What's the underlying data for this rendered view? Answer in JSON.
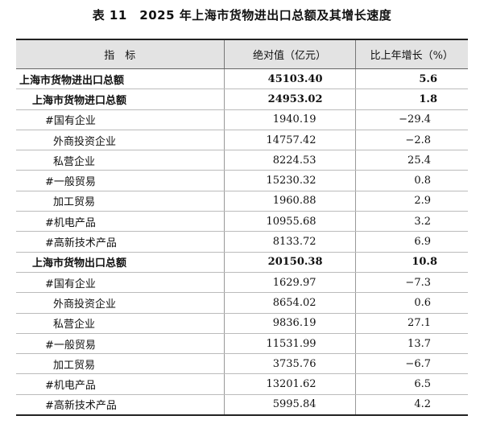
{
  "title": "表 11　2025 年上海市货物进出口总额及其增长速度",
  "headers": [
    "指　标",
    "绝对值（亿元）",
    "比上年增长（%）"
  ],
  "rows": [
    {
      "name": "上海市货物进出口总额",
      "value": "45103.40",
      "change": "5.6",
      "level": "l0",
      "bold": true
    },
    {
      "name": "上海市货物进口总额",
      "value": "24953.02",
      "change": "1.8",
      "level": "l1",
      "bold": true
    },
    {
      "name": "#国有企业",
      "value": "1940.19",
      "change": "−29.4",
      "level": "l2h",
      "bold": false
    },
    {
      "name": "外商投资企业",
      "value": "14757.42",
      "change": "−2.8",
      "level": "l2",
      "bold": false
    },
    {
      "name": "私营企业",
      "value": "8224.53",
      "change": "25.4",
      "level": "l2",
      "bold": false
    },
    {
      "name": "#一般贸易",
      "value": "15230.32",
      "change": "0.8",
      "level": "l2h",
      "bold": false
    },
    {
      "name": "加工贸易",
      "value": "1960.88",
      "change": "2.9",
      "level": "l2",
      "bold": false
    },
    {
      "name": "#机电产品",
      "value": "10955.68",
      "change": "3.2",
      "level": "l2h",
      "bold": false
    },
    {
      "name": "#高新技术产品",
      "value": "8133.72",
      "change": "6.9",
      "level": "l2h",
      "bold": false
    },
    {
      "name": "上海市货物出口总额",
      "value": "20150.38",
      "change": "10.8",
      "level": "l1",
      "bold": true
    },
    {
      "name": "#国有企业",
      "value": "1629.97",
      "change": "−7.3",
      "level": "l2h",
      "bold": false
    },
    {
      "name": "外商投资企业",
      "value": "8654.02",
      "change": "0.6",
      "level": "l2",
      "bold": false
    },
    {
      "name": "私营企业",
      "value": "9836.19",
      "change": "27.1",
      "level": "l2",
      "bold": false
    },
    {
      "name": "#一般贸易",
      "value": "11531.99",
      "change": "13.7",
      "level": "l2h",
      "bold": false
    },
    {
      "name": "加工贸易",
      "value": "3735.76",
      "change": "−6.7",
      "level": "l2",
      "bold": false
    },
    {
      "name": "#机电产品",
      "value": "13201.62",
      "change": "6.5",
      "level": "l2h",
      "bold": false
    },
    {
      "name": "#高新技术产品",
      "value": "5995.84",
      "change": "4.2",
      "level": "l2h",
      "bold": false
    }
  ]
}
